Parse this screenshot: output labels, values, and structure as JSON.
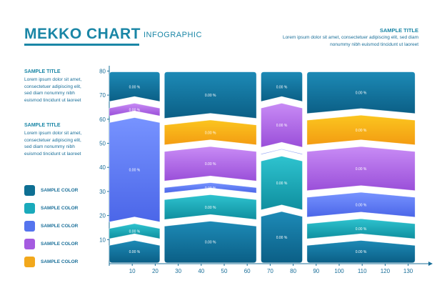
{
  "header": {
    "title": "MEKKO CHART",
    "subtitle": "INFOGRAPHIC",
    "right_title": "SAMPLE TITLE",
    "right_text": "Lorem ipsum dolor sit amet, consectetuer adipiscing elit, sed diam nonummy nibh euismod tincidunt ut laoreet"
  },
  "sidebar": {
    "blocks": [
      {
        "title": "SAMPLE TITLE",
        "text": "Lorem ipsum dolor sit amet, consectetuer adipiscing elit, sed diam nonummy nibh euismod tincidunt ut laoreet"
      },
      {
        "title": "SAMPLE TITLE",
        "text": "Lorem ipsum dolor sit amet, consectetuer adipiscing elit, sed diam nonummy nibh euismod tincidunt ut laoreet"
      }
    ]
  },
  "legend": [
    {
      "label": "SAMPLE COLOR",
      "color": "#0e6f93"
    },
    {
      "label": "SAMPLE COLOR",
      "color": "#1aaabb"
    },
    {
      "label": "SAMPLE COLOR",
      "color": "#5574ee"
    },
    {
      "label": "SAMPLE COLOR",
      "color": "#a55be0"
    },
    {
      "label": "SAMPLE COLOR",
      "color": "#f2a81c"
    }
  ],
  "colors": {
    "darkblue": [
      "#1d8ab6",
      "#0b5f86"
    ],
    "teal": [
      "#2ec3cf",
      "#0f8f9f"
    ],
    "blue": [
      "#7793ff",
      "#4b66e8"
    ],
    "purple": [
      "#c88bf5",
      "#9a4fd9"
    ],
    "yellow": [
      "#fbc51f",
      "#f39c12"
    ],
    "axis": "#1a6f99"
  },
  "chart_data": {
    "type": "mekko",
    "title": "MEKKO CHART",
    "xlim": [
      0,
      135
    ],
    "ylim": [
      0,
      80
    ],
    "xticks": [
      10,
      20,
      30,
      40,
      50,
      60,
      70,
      80,
      90,
      100,
      110,
      120,
      130
    ],
    "yticks": [
      10,
      20,
      30,
      40,
      50,
      60,
      70,
      80
    ],
    "columns": [
      {
        "x0": 0,
        "x1": 22,
        "segments": [
          {
            "y0": 0,
            "y1": 10,
            "color": "darkblue",
            "label": "0.00 %"
          },
          {
            "y0": 10,
            "y1": 17,
            "color": "teal",
            "label": "0.00 %"
          },
          {
            "y0": 17,
            "y1": 61,
            "color": "blue",
            "label": "0.00 %"
          },
          {
            "y0": 61,
            "y1": 67,
            "color": "purple",
            "label": "0.00 %"
          },
          {
            "y0": 67,
            "y1": 80,
            "color": "darkblue",
            "label": "0.00 %"
          }
        ]
      },
      {
        "x0": 24,
        "x1": 64,
        "segments": [
          {
            "y0": 0,
            "y1": 18,
            "color": "darkblue",
            "label": "0.00 %"
          },
          {
            "y0": 18,
            "y1": 29,
            "color": "teal",
            "label": "0.00 %"
          },
          {
            "y0": 29,
            "y1": 34,
            "color": "blue",
            "label": "0.00 %"
          },
          {
            "y0": 34,
            "y1": 49,
            "color": "purple",
            "label": "0.00 %"
          },
          {
            "y0": 49,
            "y1": 60,
            "color": "yellow",
            "label": "0.00 %"
          },
          {
            "y0": 60,
            "y1": 80,
            "color": "darkblue",
            "label": "0.00 %"
          }
        ]
      },
      {
        "x0": 66,
        "x1": 84,
        "segments": [
          {
            "y0": 0,
            "y1": 22,
            "color": "darkblue",
            "label": "0.00 %"
          },
          {
            "y0": 22,
            "y1": 45,
            "color": "teal",
            "label": "0.00 %"
          },
          {
            "y0": 45,
            "y1": 48,
            "color": "blue",
            "label": "0.00 %"
          },
          {
            "y0": 48,
            "y1": 67,
            "color": "purple",
            "label": "0.00 %"
          },
          {
            "y0": 67,
            "y1": 80,
            "color": "darkblue",
            "label": "0.00 %"
          }
        ]
      },
      {
        "x0": 86,
        "x1": 133,
        "segments": [
          {
            "y0": 0,
            "y1": 10,
            "color": "darkblue",
            "label": "0.00 %"
          },
          {
            "y0": 10,
            "y1": 19,
            "color": "teal",
            "label": "0.00 %"
          },
          {
            "y0": 19,
            "y1": 30,
            "color": "blue",
            "label": "0.00 %"
          },
          {
            "y0": 30,
            "y1": 49,
            "color": "purple",
            "label": "0.00 %"
          },
          {
            "y0": 49,
            "y1": 62,
            "color": "yellow",
            "label": "0.00 %"
          },
          {
            "y0": 62,
            "y1": 80,
            "color": "darkblue",
            "label": "0.00 %"
          }
        ]
      }
    ]
  }
}
